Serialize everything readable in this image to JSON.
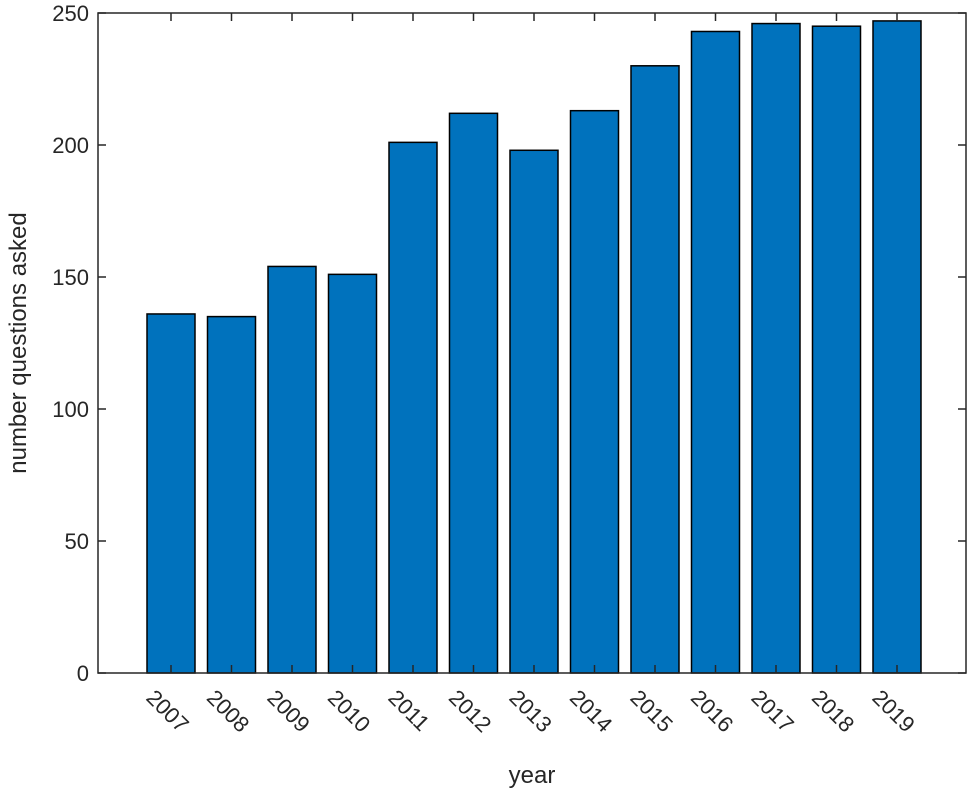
{
  "chart_data": {
    "type": "bar",
    "categories": [
      "2007",
      "2008",
      "2009",
      "2010",
      "2011",
      "2012",
      "2013",
      "2014",
      "2015",
      "2016",
      "2017",
      "2018",
      "2019"
    ],
    "values": [
      136,
      135,
      154,
      151,
      201,
      212,
      198,
      213,
      230,
      243,
      246,
      245,
      247
    ],
    "xlabel": "year",
    "ylabel": "number questions asked",
    "ylim": [
      0,
      250
    ],
    "yticks": [
      "0",
      "50",
      "100",
      "150",
      "200",
      "250"
    ],
    "grid": false,
    "bar_color": "#0072BD",
    "edge_color": "#000000"
  }
}
